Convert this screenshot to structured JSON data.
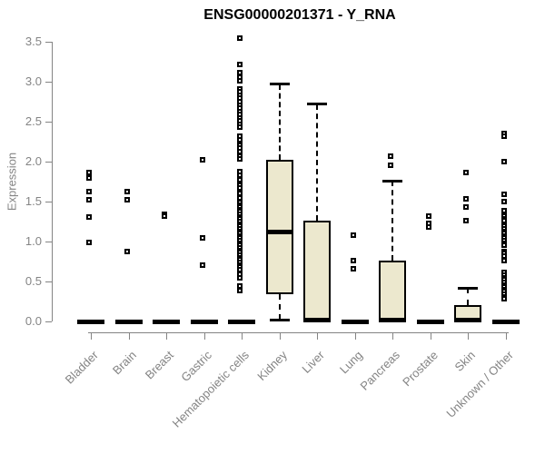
{
  "chart_data": {
    "type": "boxplot",
    "title": "ENSG00000201371 - Y_RNA",
    "ylabel": "Expression",
    "xlabel": "",
    "ylim": [
      0,
      3.5
    ],
    "ytick_labels": [
      "0.0",
      "0.5",
      "1.0",
      "1.5",
      "2.0",
      "2.5",
      "3.0",
      "3.5"
    ],
    "ytick_values": [
      0.0,
      0.5,
      1.0,
      1.5,
      2.0,
      2.5,
      3.0,
      3.5
    ],
    "grid": "off",
    "legend": "none",
    "colors": {
      "box_fill": "#ece8ce",
      "box_stroke": "#000000",
      "axis": "#848484",
      "title": "#000000",
      "background": "#ffffff"
    },
    "categories": [
      "Bladder",
      "Brain",
      "Breast",
      "Gastric",
      "Hematopoietic cells",
      "Kidney",
      "Liver",
      "Lung",
      "Pancreas",
      "Prostate",
      "Skin",
      "Unknown / Other"
    ],
    "groups": [
      {
        "label": "Bladder",
        "stats": {
          "whisker_low": 0,
          "q1": 0,
          "median": 0,
          "q3": 0,
          "whisker_high": 0
        },
        "outliers": [
          1.86,
          1.8,
          1.62,
          1.52,
          1.31,
          0.99
        ]
      },
      {
        "label": "Brain",
        "stats": {
          "whisker_low": 0,
          "q1": 0,
          "median": 0,
          "q3": 0,
          "whisker_high": 0
        },
        "outliers": [
          1.63,
          1.52,
          0.88
        ]
      },
      {
        "label": "Breast",
        "stats": {
          "whisker_low": 0,
          "q1": 0,
          "median": 0,
          "q3": 0,
          "whisker_high": 0
        },
        "outliers": [
          1.34,
          1.32
        ]
      },
      {
        "label": "Gastric",
        "stats": {
          "whisker_low": 0,
          "q1": 0,
          "median": 0,
          "q3": 0,
          "whisker_high": 0
        },
        "outliers": [
          2.02,
          1.04,
          0.7
        ]
      },
      {
        "label": "Hematopoietic cells",
        "stats": {
          "whisker_low": 0,
          "q1": 0,
          "median": 0,
          "q3": 0,
          "whisker_high": 0
        },
        "outliers": [
          3.54,
          3.22,
          3.11,
          3.06,
          3.01,
          2.91,
          2.87,
          2.83,
          2.79,
          2.75,
          2.71,
          2.67,
          2.63,
          2.59,
          2.55,
          2.51,
          2.47,
          2.43,
          2.32,
          2.27,
          2.21,
          2.17,
          2.12,
          2.07,
          2.03,
          1.88,
          1.83,
          1.77,
          1.71,
          1.67,
          1.6,
          1.55,
          1.49,
          1.46,
          1.43,
          1.4,
          1.37,
          1.34,
          1.31,
          1.28,
          1.25,
          1.22,
          1.19,
          1.16,
          1.13,
          1.1,
          1.07,
          1.04,
          1.01,
          0.98,
          0.95,
          0.92,
          0.89,
          0.86,
          0.83,
          0.8,
          0.77,
          0.74,
          0.71,
          0.68,
          0.65,
          0.59,
          0.55,
          0.44,
          0.39
        ]
      },
      {
        "label": "Kidney",
        "stats": {
          "whisker_low": 0.02,
          "q1": 0.34,
          "median": 1.12,
          "q3": 2.02,
          "whisker_high": 2.97
        },
        "outliers": []
      },
      {
        "label": "Liver",
        "stats": {
          "whisker_low": 0,
          "q1": 0,
          "median": 0.02,
          "q3": 1.26,
          "whisker_high": 2.72
        },
        "outliers": []
      },
      {
        "label": "Lung",
        "stats": {
          "whisker_low": 0,
          "q1": 0,
          "median": 0,
          "q3": 0,
          "whisker_high": 0
        },
        "outliers": [
          1.08,
          0.76,
          0.66
        ]
      },
      {
        "label": "Pancreas",
        "stats": {
          "whisker_low": 0,
          "q1": 0,
          "median": 0.02,
          "q3": 0.76,
          "whisker_high": 1.76
        },
        "outliers": [
          2.07,
          1.96
        ]
      },
      {
        "label": "Prostate",
        "stats": {
          "whisker_low": 0,
          "q1": 0,
          "median": 0,
          "q3": 0,
          "whisker_high": 0
        },
        "outliers": [
          1.32,
          1.23,
          1.18
        ]
      },
      {
        "label": "Skin",
        "stats": {
          "whisker_low": 0,
          "q1": 0,
          "median": 0.02,
          "q3": 0.21,
          "whisker_high": 0.42
        },
        "outliers": [
          1.86,
          1.53,
          1.43,
          1.26
        ]
      },
      {
        "label": "Unknown / Other",
        "stats": {
          "whisker_low": 0,
          "q1": 0,
          "median": 0,
          "q3": 0,
          "whisker_high": 0
        },
        "outliers": [
          2.35,
          2.32,
          2.0,
          1.59,
          1.5,
          1.39,
          1.32,
          1.28,
          1.26,
          1.22,
          1.19,
          1.16,
          1.13,
          1.1,
          1.07,
          1.04,
          1.01,
          0.98,
          0.95,
          0.88,
          0.85,
          0.82,
          0.76,
          0.61,
          0.58,
          0.55,
          0.52,
          0.49,
          0.46,
          0.43,
          0.4,
          0.37,
          0.34,
          0.31,
          0.28
        ]
      }
    ]
  }
}
